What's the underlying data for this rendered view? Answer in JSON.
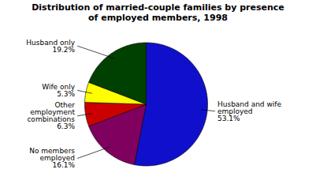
{
  "chart_data": {
    "type": "pie",
    "title": "Distribution of married-couple families by presence\nof employed members, 1998",
    "categories": [
      "Husband and wife\nemployed",
      "No members\nemployed",
      "Other\nemployment\ncombinations",
      "Wife only",
      "Husband only"
    ],
    "values": [
      53.1,
      16.1,
      6.3,
      5.3,
      19.2
    ],
    "value_labels": [
      "53.1%",
      "16.1%",
      "6.3%",
      "5.3%",
      "19.2%"
    ],
    "colors": [
      "#1010cc",
      "#800060",
      "#cc0000",
      "#ffff00",
      "#004000"
    ],
    "data_labels": true
  }
}
